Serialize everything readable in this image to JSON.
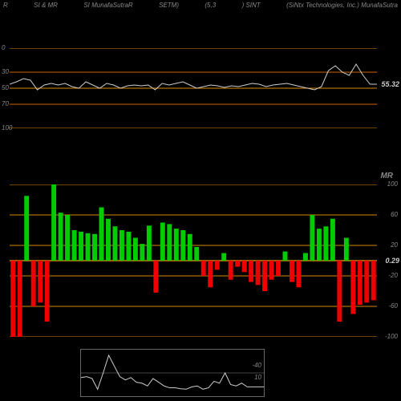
{
  "header": {
    "left1": "R",
    "left2": "SI & MR",
    "left3": "SI MunafaSutraR",
    "center1": "SETM)",
    "center2": "(5,3",
    "ticker": ") SINT",
    "right": "(SiNtx Technologies, Inc.) MunafaSutra"
  },
  "top_chart": {
    "type": "line",
    "background": "#000000",
    "grid_color": "#d68a00",
    "high_band_color": "#663300",
    "line_color": "#cccccc",
    "y_labels": [
      "100",
      "70",
      "50",
      "30",
      "0"
    ],
    "y_positions": [
      0,
      30,
      50,
      70,
      100
    ],
    "current_value": "55.32",
    "current_value_color": "#cccccc",
    "points": [
      55,
      58,
      62,
      60,
      48,
      54,
      56,
      54,
      56,
      52,
      50,
      58,
      54,
      50,
      56,
      54,
      50,
      53,
      54,
      53,
      54,
      48,
      56,
      54,
      56,
      58,
      54,
      50,
      52,
      54,
      53,
      51,
      53,
      52,
      54,
      56,
      55,
      52,
      54,
      55,
      56,
      54,
      52,
      50,
      48,
      52,
      72,
      78,
      70,
      66,
      80,
      66,
      55,
      55
    ]
  },
  "bottom_chart": {
    "type": "bar",
    "background": "#000000",
    "grid_color": "#d68a00",
    "zero_line_color": "#cc8800",
    "positive_color": "#00cc00",
    "negative_color": "#ee0000",
    "y_labels_right": [
      "100",
      "60",
      "20",
      "-20",
      "-60",
      "-100"
    ],
    "title": "MR",
    "title_color": "#888888",
    "current_value": "0.29",
    "current_value_color": "#cccccc",
    "bars": [
      -100,
      -100,
      85,
      -60,
      -55,
      -80,
      114,
      63,
      60,
      40,
      38,
      36,
      35,
      70,
      55,
      45,
      40,
      38,
      30,
      22,
      46,
      -42,
      50,
      48,
      42,
      40,
      35,
      18,
      -20,
      -35,
      -12,
      10,
      -25,
      -8,
      -15,
      -28,
      -32,
      -40,
      -25,
      -20,
      12,
      -28,
      -35,
      10,
      60,
      42,
      45,
      55,
      -80,
      30,
      -70,
      -58,
      -55,
      -52
    ]
  },
  "mini_chart": {
    "type": "line",
    "line_color": "#cccccc",
    "border_color": "#666666",
    "y_labels": [
      "-40",
      "10"
    ],
    "points": [
      40,
      42,
      38,
      15,
      50,
      88,
      65,
      42,
      35,
      40,
      30,
      28,
      22,
      38,
      30,
      22,
      18,
      18,
      16,
      15,
      20,
      22,
      15,
      18,
      32,
      28,
      50,
      25,
      22,
      28,
      20,
      20,
      20,
      20
    ]
  }
}
